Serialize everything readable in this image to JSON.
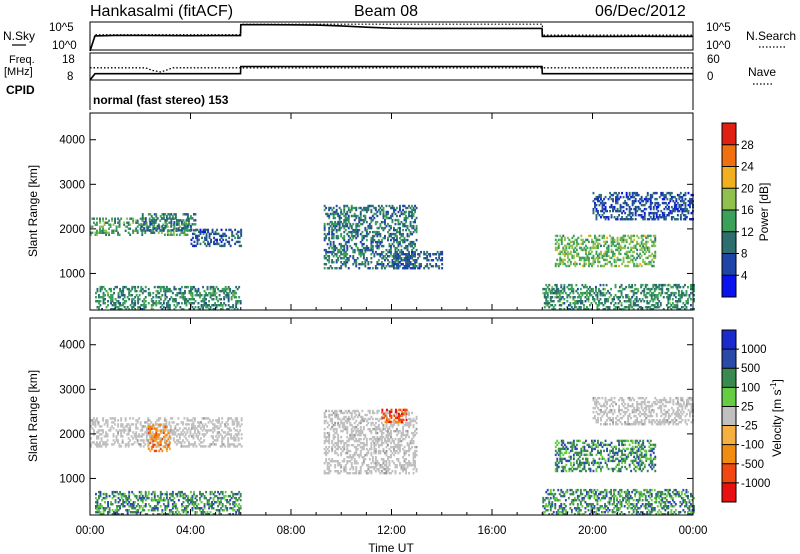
{
  "header": {
    "station": "Hankasalmi (fitACF)",
    "beam": "Beam 08",
    "date": "06/Dec/2012"
  },
  "top_panels": {
    "nsky_label": "N.Sky",
    "nsky_ticks": [
      "10^5",
      "10^0"
    ],
    "nsearch_label": "N.Search",
    "nsearch_ticks": [
      "10^5",
      "10^0"
    ],
    "freq_label": "Freq.",
    "freq_unit": "[MHz]",
    "freq_ticks": [
      "18",
      "8"
    ],
    "nave_label": "Nave",
    "nave_ticks": [
      "60",
      "0"
    ],
    "cpid_label": "CPID",
    "cpid_text": "normal (fast stereo) 153"
  },
  "colors": {
    "power_scale": [
      "#0a12ee",
      "#1e44a8",
      "#2f6e6e",
      "#3aa05a",
      "#8fc050",
      "#f0b020",
      "#f07010",
      "#e02010"
    ],
    "velocity_scale": [
      "#e81010",
      "#f04810",
      "#f08c10",
      "#f4b040",
      "#c0c0c0",
      "#66cc44",
      "#3a8a50",
      "#2a4aaa",
      "#1a2acc"
    ],
    "ground_scatter": "#c0c0c0"
  },
  "chart_data": [
    {
      "type": "line",
      "title": "N.Sky / N.Search",
      "x_unit": "hours UT",
      "xlim": [
        0,
        24
      ],
      "y_scale": "log",
      "ylim": [
        1,
        100000
      ],
      "series": [
        {
          "name": "N.Sky",
          "style": "solid",
          "x": [
            0,
            0.2,
            1,
            2,
            3,
            4,
            5,
            5.99,
            6.0,
            7,
            8,
            9,
            10,
            11,
            12,
            13,
            14,
            15,
            16,
            17,
            17.99,
            18.0,
            19,
            20,
            21,
            22,
            23,
            24
          ],
          "y": [
            1,
            500,
            600,
            620,
            560,
            540,
            560,
            560,
            50000,
            50000,
            48000,
            42000,
            30000,
            18000,
            12000,
            11000,
            11000,
            11000,
            11000,
            11000,
            11000,
            400,
            420,
            410,
            400,
            420,
            410,
            400
          ]
        },
        {
          "name": "N.Search",
          "style": "dotted",
          "x": [
            0,
            0.2,
            6.0,
            6.01,
            18.0,
            18.01,
            24
          ],
          "y": [
            1,
            800,
            800,
            60000,
            60000,
            700,
            700
          ]
        }
      ]
    },
    {
      "type": "line",
      "title": "Freq. / Nave",
      "x_unit": "hours UT",
      "xlim": [
        0,
        24
      ],
      "ylim": [
        8,
        18
      ],
      "nave_lim": [
        0,
        60
      ],
      "series": [
        {
          "name": "Freq.",
          "style": "dotted",
          "axis": "left",
          "x": [
            0,
            2.2,
            2.5,
            2.8,
            3.0,
            3.3,
            24
          ],
          "y": [
            12.5,
            12.5,
            11.5,
            11.0,
            11.5,
            12.5,
            12.5
          ]
        },
        {
          "name": "Nave",
          "style": "solid",
          "axis": "right",
          "x": [
            0,
            0.2,
            5.99,
            6.0,
            17.99,
            18.0,
            24
          ],
          "y": [
            0,
            14,
            14,
            30,
            30,
            14,
            14
          ]
        }
      ]
    },
    {
      "type": "heatmap",
      "title": "Power",
      "xlabel": "",
      "ylabel": "Slant Range [km]",
      "colorbar_label": "Power [dB]",
      "xlim": [
        0,
        24
      ],
      "ylim": [
        180,
        4600
      ],
      "x_ticks": [
        "00:00",
        "04:00",
        "08:00",
        "12:00",
        "16:00",
        "20:00",
        "00:00"
      ],
      "y_ticks": [
        1000,
        2000,
        3000,
        4000
      ],
      "colorbar_ticks": [
        "4",
        "8",
        "12",
        "16",
        "20",
        "24",
        "28"
      ],
      "colorbar_range": [
        0,
        32
      ],
      "regions": [
        {
          "t0": 0.0,
          "t1": 4.0,
          "r0": 1850,
          "r1": 2250,
          "power": 12
        },
        {
          "t0": 2.0,
          "t1": 4.2,
          "r0": 1950,
          "r1": 2350,
          "power": 8
        },
        {
          "t0": 4.0,
          "t1": 6.0,
          "r0": 1600,
          "r1": 2000,
          "power": 6
        },
        {
          "t0": 0.2,
          "t1": 6.0,
          "r0": 180,
          "r1": 700,
          "power": 10
        },
        {
          "t0": 9.3,
          "t1": 13.0,
          "r0": 1100,
          "r1": 2500,
          "power": 8
        },
        {
          "t0": 12.0,
          "t1": 14.0,
          "r0": 1100,
          "r1": 1500,
          "power": 6
        },
        {
          "t0": 18.0,
          "t1": 24.0,
          "r0": 180,
          "r1": 750,
          "power": 10
        },
        {
          "t0": 18.5,
          "t1": 22.5,
          "r0": 1150,
          "r1": 1850,
          "power": 14
        },
        {
          "t0": 20.0,
          "t1": 24.0,
          "r0": 2200,
          "r1": 2800,
          "power": 5
        }
      ]
    },
    {
      "type": "heatmap",
      "title": "Velocity",
      "xlabel": "Time UT",
      "ylabel": "Slant Range [km]",
      "colorbar_label": "Velocity [m s^-1]",
      "xlim": [
        0,
        24
      ],
      "ylim": [
        180,
        4600
      ],
      "x_ticks": [
        "00:00",
        "04:00",
        "08:00",
        "12:00",
        "16:00",
        "20:00",
        "00:00"
      ],
      "y_ticks": [
        1000,
        2000,
        3000,
        4000
      ],
      "colorbar_ticks": [
        "-1000",
        "-500",
        "-100",
        "-25",
        "25",
        "100",
        "500",
        "1000"
      ],
      "regions": [
        {
          "t0": 0.0,
          "t1": 6.0,
          "r0": 1700,
          "r1": 2350,
          "velocity": "ground"
        },
        {
          "t0": 9.3,
          "t1": 13.0,
          "r0": 1100,
          "r1": 2500,
          "velocity": "ground"
        },
        {
          "t0": 20.0,
          "t1": 24.0,
          "r0": 2200,
          "r1": 2800,
          "velocity": "ground"
        },
        {
          "t0": 2.3,
          "t1": 3.2,
          "r0": 1600,
          "r1": 2200,
          "velocity": -300
        },
        {
          "t0": 11.6,
          "t1": 12.6,
          "r0": 2250,
          "r1": 2550,
          "velocity": -400
        },
        {
          "t0": 18.5,
          "t1": 22.5,
          "r0": 1150,
          "r1": 1850,
          "velocity": 80
        },
        {
          "t0": 0.2,
          "t1": 6.0,
          "r0": 180,
          "r1": 700,
          "velocity": 60
        },
        {
          "t0": 18.0,
          "t1": 24.0,
          "r0": 180,
          "r1": 750,
          "velocity": 60
        }
      ]
    }
  ]
}
